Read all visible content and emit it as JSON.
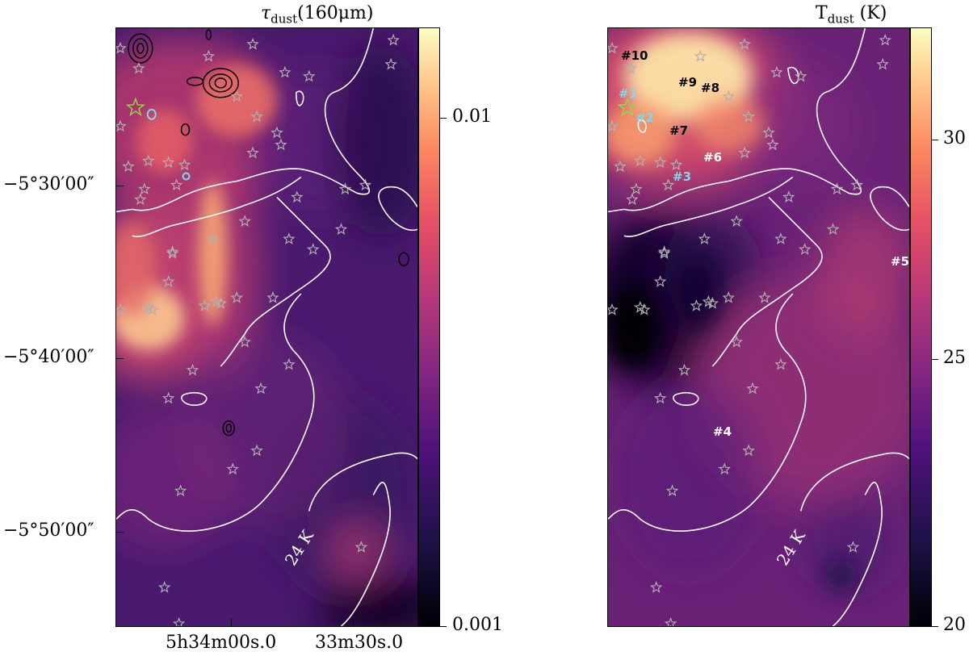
{
  "left_panel": {
    "title": "τdust(160μm)",
    "title_main": "τ",
    "title_sub": "dust",
    "title_paren": "(160μm)",
    "colorbar": {
      "ticks": [
        "0.01",
        "0.001"
      ],
      "colormap": "magma"
    },
    "y_ticks": [
      "−5°30′00″",
      "−5°40′00″",
      "−5°50′00″"
    ],
    "x_ticks": [
      "5h34m00s.0",
      "33m30s.0"
    ],
    "contour_label": "24 K"
  },
  "right_panel": {
    "title": "Tdust (K)",
    "title_main": "T",
    "title_sub": "dust",
    "title_paren": " (K)",
    "colorbar": {
      "ticks": [
        "30",
        "25",
        "20"
      ],
      "colormap": "magma"
    },
    "contour_label": "24 K",
    "sources": [
      {
        "label": "#10",
        "color": "#000000"
      },
      {
        "label": "#9",
        "color": "#000000"
      },
      {
        "label": "#8",
        "color": "#000000"
      },
      {
        "label": "#1",
        "color": "#7fd8f0"
      },
      {
        "label": "#2",
        "color": "#7fd8f0"
      },
      {
        "label": "#7",
        "color": "#000000"
      },
      {
        "label": "#6",
        "color": "#ffffff"
      },
      {
        "label": "#3",
        "color": "#7fd8f0"
      },
      {
        "label": "#5",
        "color": "#ffffff"
      },
      {
        "label": "#4",
        "color": "#ffffff"
      }
    ]
  },
  "colors": {
    "contour": "#ffffff",
    "star": "#b0b0b0",
    "highlight_star": "#9bd24a",
    "cyan_contour": "#7fd8f0"
  }
}
